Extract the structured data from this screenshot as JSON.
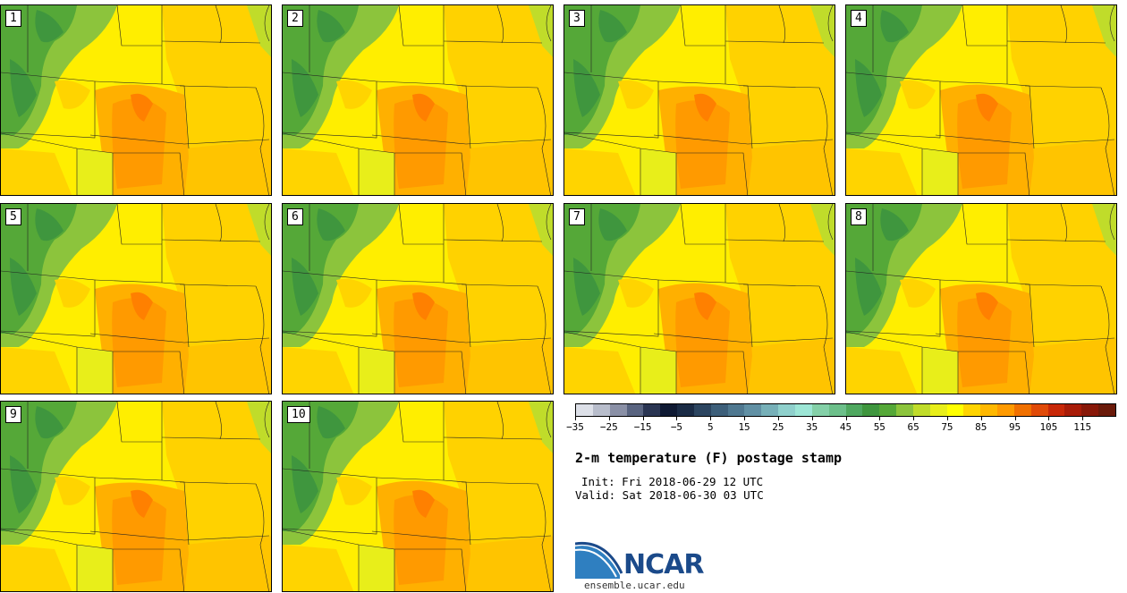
{
  "panels": [
    {
      "label": "1"
    },
    {
      "label": "2"
    },
    {
      "label": "3"
    },
    {
      "label": "4"
    },
    {
      "label": "5"
    },
    {
      "label": "6"
    },
    {
      "label": "7"
    },
    {
      "label": "8"
    },
    {
      "label": "9"
    },
    {
      "label": "10"
    }
  ],
  "colorbar": {
    "colors": [
      "#dde0e8",
      "#b8bdcb",
      "#8a90a6",
      "#596480",
      "#2a3552",
      "#0f1a33",
      "#1a2b45",
      "#2c4560",
      "#3d5f7a",
      "#4f7890",
      "#6190a4",
      "#77b0b8",
      "#8fd0cc",
      "#9de6d6",
      "#84d0a8",
      "#6cbf8a",
      "#4fa860",
      "#3f963e",
      "#55a838",
      "#8cc43c",
      "#c0dc2a",
      "#e8ee1a",
      "#ffff00",
      "#ffd400",
      "#ffb800",
      "#ff9a00",
      "#f07000",
      "#e04a08",
      "#c82808",
      "#a81c08",
      "#881808",
      "#6a1a0a"
    ],
    "tick_labels": [
      "−35",
      "−25",
      "−15",
      "−5",
      "5",
      "15",
      "25",
      "35",
      "45",
      "55",
      "65",
      "75",
      "85",
      "95",
      "105",
      "115"
    ]
  },
  "title": "2-m temperature (F) postage stamp",
  "init": "Init: Fri 2018-06-29 12 UTC",
  "valid": "Valid: Sat 2018-06-30 03 UTC",
  "logo": {
    "text": "NCAR",
    "colors": [
      "#1b4a8a",
      "#2f7fc0"
    ]
  },
  "site": "ensemble.ucar.edu"
}
